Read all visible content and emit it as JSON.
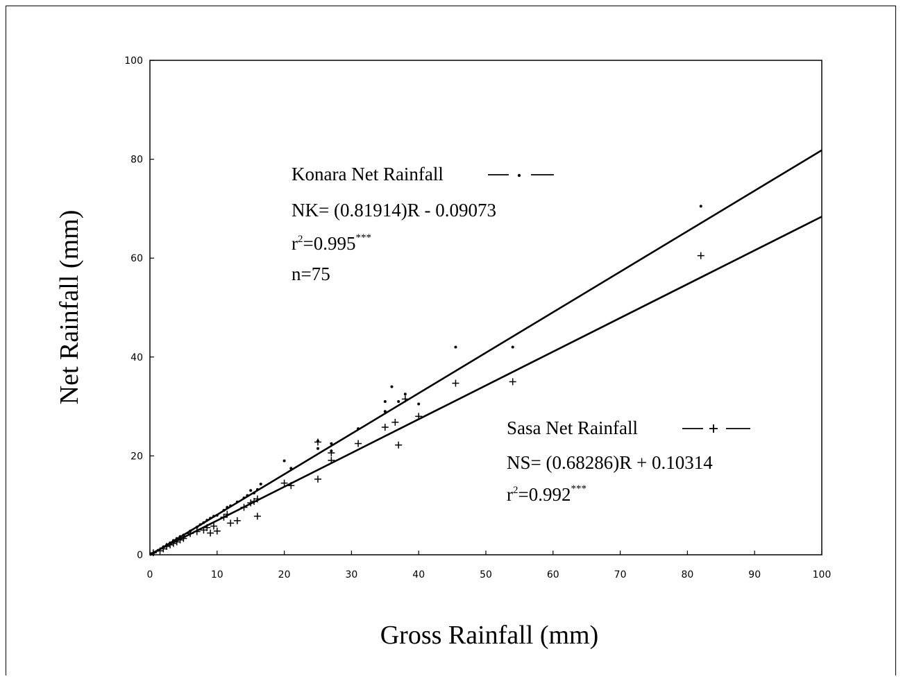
{
  "chart_data": {
    "type": "scatter",
    "title": "",
    "xlabel": "Gross Rainfall (mm)",
    "ylabel": "Net Rainfall (mm)",
    "xlim": [
      0,
      100
    ],
    "ylim": [
      0,
      100
    ],
    "xticks": [
      "0",
      "10",
      "20",
      "30",
      "40",
      "50",
      "60",
      "70",
      "80",
      "90",
      "100"
    ],
    "yticks": [
      "0",
      "20",
      "40",
      "60",
      "80",
      "100"
    ],
    "grid": false,
    "series": [
      {
        "name": "Konara Net Rainfall",
        "marker": "dot",
        "fit": {
          "slope": 0.81914,
          "intercept": -0.09073
        },
        "x": [
          0.5,
          1.2,
          2,
          2.5,
          3,
          3.5,
          4,
          4.5,
          5,
          6,
          7,
          7.5,
          8,
          8.5,
          9,
          9.5,
          10,
          11,
          11.5,
          12,
          13,
          14,
          14.5,
          15,
          15.5,
          16,
          16.5,
          20,
          21,
          25,
          25,
          27,
          27,
          31,
          35,
          35,
          36,
          37,
          38,
          40,
          45.5,
          54,
          82
        ],
        "y": [
          0.3,
          0.9,
          1.6,
          2,
          2.4,
          2.9,
          3.3,
          3.7,
          4,
          4.8,
          5.6,
          6.1,
          6.5,
          7,
          7.4,
          7.8,
          8,
          9,
          9.6,
          9.9,
          10.7,
          11.5,
          12,
          13,
          12.5,
          13.2,
          14.3,
          19,
          17.5,
          21.5,
          23,
          21,
          22.5,
          25.5,
          31,
          29,
          34,
          31,
          32.5,
          30.5,
          42,
          42,
          70.5
        ]
      },
      {
        "name": "Sasa Net Rainfall",
        "marker": "plus",
        "fit": {
          "slope": 0.68286,
          "intercept": 0.10314
        },
        "x": [
          0.5,
          1.5,
          2,
          2.5,
          3,
          3.5,
          4,
          4.5,
          5,
          6,
          7,
          8,
          8.5,
          9,
          9.5,
          10,
          11,
          11.5,
          12,
          13,
          14,
          15,
          15.5,
          16,
          16,
          20,
          21,
          25,
          25,
          27,
          27,
          31,
          35,
          36.5,
          37,
          38,
          40,
          45.5,
          54,
          82
        ],
        "y": [
          0.4,
          0.8,
          1.2,
          1.7,
          2,
          2.3,
          2.6,
          3,
          3.3,
          4.3,
          4.7,
          5,
          5.5,
          4.4,
          5.8,
          4.8,
          7.6,
          8.2,
          6.4,
          6.9,
          9.6,
          10.5,
          10.8,
          11.3,
          7.8,
          14.5,
          14,
          22.8,
          15.3,
          19.1,
          20.6,
          22.5,
          25.8,
          26.8,
          22.2,
          31.5,
          28,
          34.7,
          35,
          60.5
        ]
      }
    ],
    "annotations": {
      "konara": {
        "legend": "Konara Net Rainfall",
        "equation": "NK= (0.81914)R - 0.09073",
        "r2_prefix": "r",
        "r2_exp": "2",
        "r2_value": "=0.995",
        "r2_sig": "***",
        "n": "n=75"
      },
      "sasa": {
        "legend": "Sasa Net Rainfall",
        "equation": "NS= (0.68286)R + 0.10314",
        "r2_prefix": "r",
        "r2_exp": "2",
        "r2_value": "=0.992",
        "r2_sig": "***"
      }
    }
  }
}
